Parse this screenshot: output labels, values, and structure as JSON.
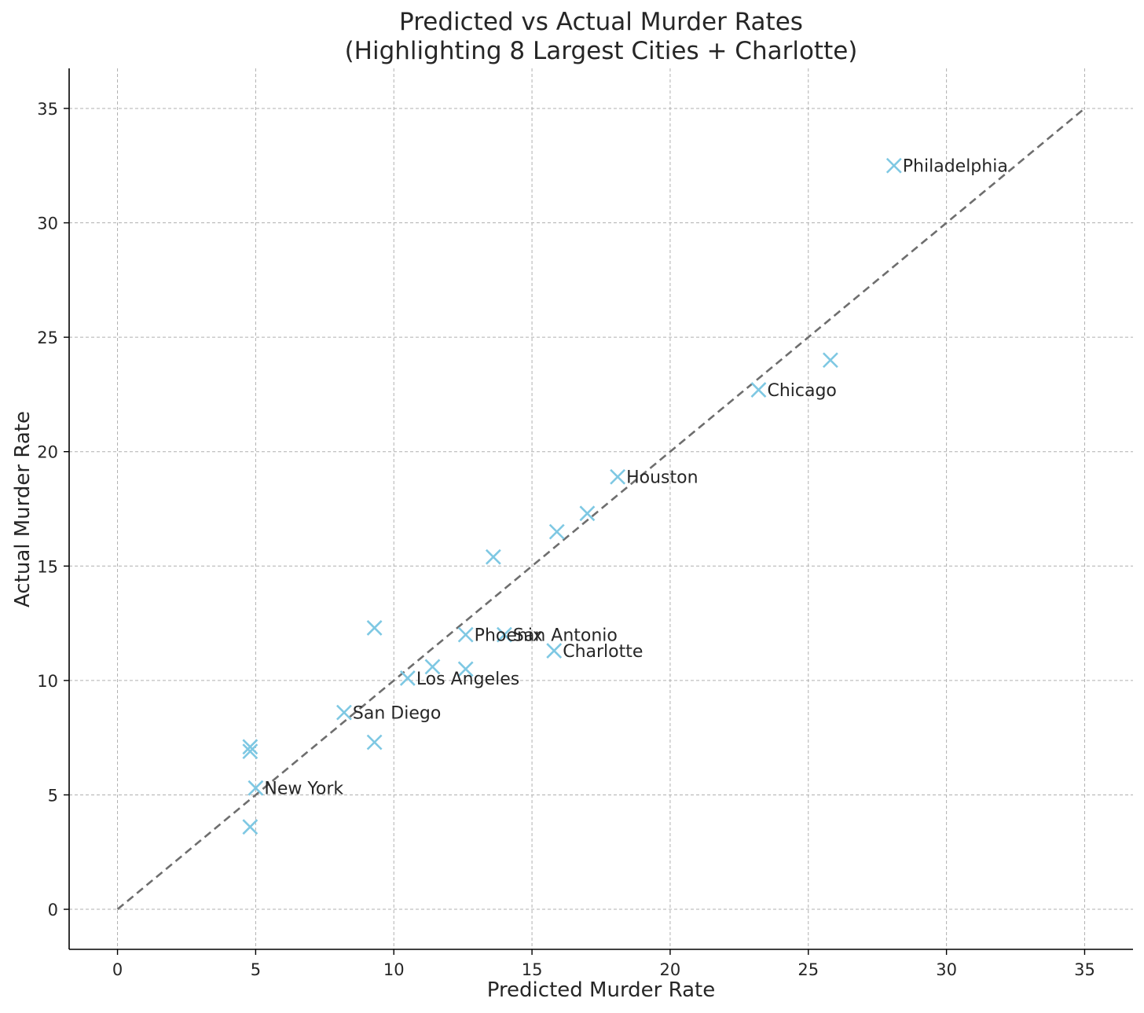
{
  "chart_data": {
    "type": "scatter",
    "title": "Predicted vs Actual Murder Rates",
    "subtitle": "(Highlighting 8 Largest Cities + Charlotte)",
    "xlabel": "Predicted Murder Rate",
    "ylabel": "Actual Murder Rate",
    "xlim": [
      -1.75,
      36.75
    ],
    "ylim": [
      -1.75,
      36.75
    ],
    "xticks": [
      "0",
      "5",
      "10",
      "15",
      "20",
      "25",
      "30",
      "35"
    ],
    "yticks": [
      "0",
      "5",
      "10",
      "15",
      "20",
      "25",
      "30",
      "35"
    ],
    "grid": true,
    "marker": "x",
    "marker_color": "#7ec8e3",
    "reference_line": {
      "from": [
        0,
        0
      ],
      "to": [
        35,
        35
      ],
      "style": "dashed",
      "color": "#6e6e6e"
    },
    "points": [
      {
        "x": 28.1,
        "y": 32.5,
        "label": "Philadelphia"
      },
      {
        "x": 25.8,
        "y": 24.0,
        "label": ""
      },
      {
        "x": 23.2,
        "y": 22.7,
        "label": "Chicago"
      },
      {
        "x": 18.1,
        "y": 18.9,
        "label": "Houston"
      },
      {
        "x": 17.0,
        "y": 17.3,
        "label": ""
      },
      {
        "x": 15.9,
        "y": 16.5,
        "label": ""
      },
      {
        "x": 13.6,
        "y": 15.4,
        "label": ""
      },
      {
        "x": 9.3,
        "y": 12.3,
        "label": ""
      },
      {
        "x": 12.6,
        "y": 12.0,
        "label": "Phoenix"
      },
      {
        "x": 14.0,
        "y": 12.0,
        "label": "San Antonio"
      },
      {
        "x": 15.8,
        "y": 11.3,
        "label": "Charlotte"
      },
      {
        "x": 11.4,
        "y": 10.6,
        "label": ""
      },
      {
        "x": 12.6,
        "y": 10.5,
        "label": ""
      },
      {
        "x": 10.5,
        "y": 10.1,
        "label": "Los Angeles"
      },
      {
        "x": 8.2,
        "y": 8.6,
        "label": "San Diego"
      },
      {
        "x": 9.3,
        "y": 7.3,
        "label": ""
      },
      {
        "x": 4.8,
        "y": 7.1,
        "label": ""
      },
      {
        "x": 4.8,
        "y": 6.9,
        "label": ""
      },
      {
        "x": 5.0,
        "y": 5.3,
        "label": "New York"
      },
      {
        "x": 4.8,
        "y": 3.6,
        "label": ""
      }
    ]
  }
}
